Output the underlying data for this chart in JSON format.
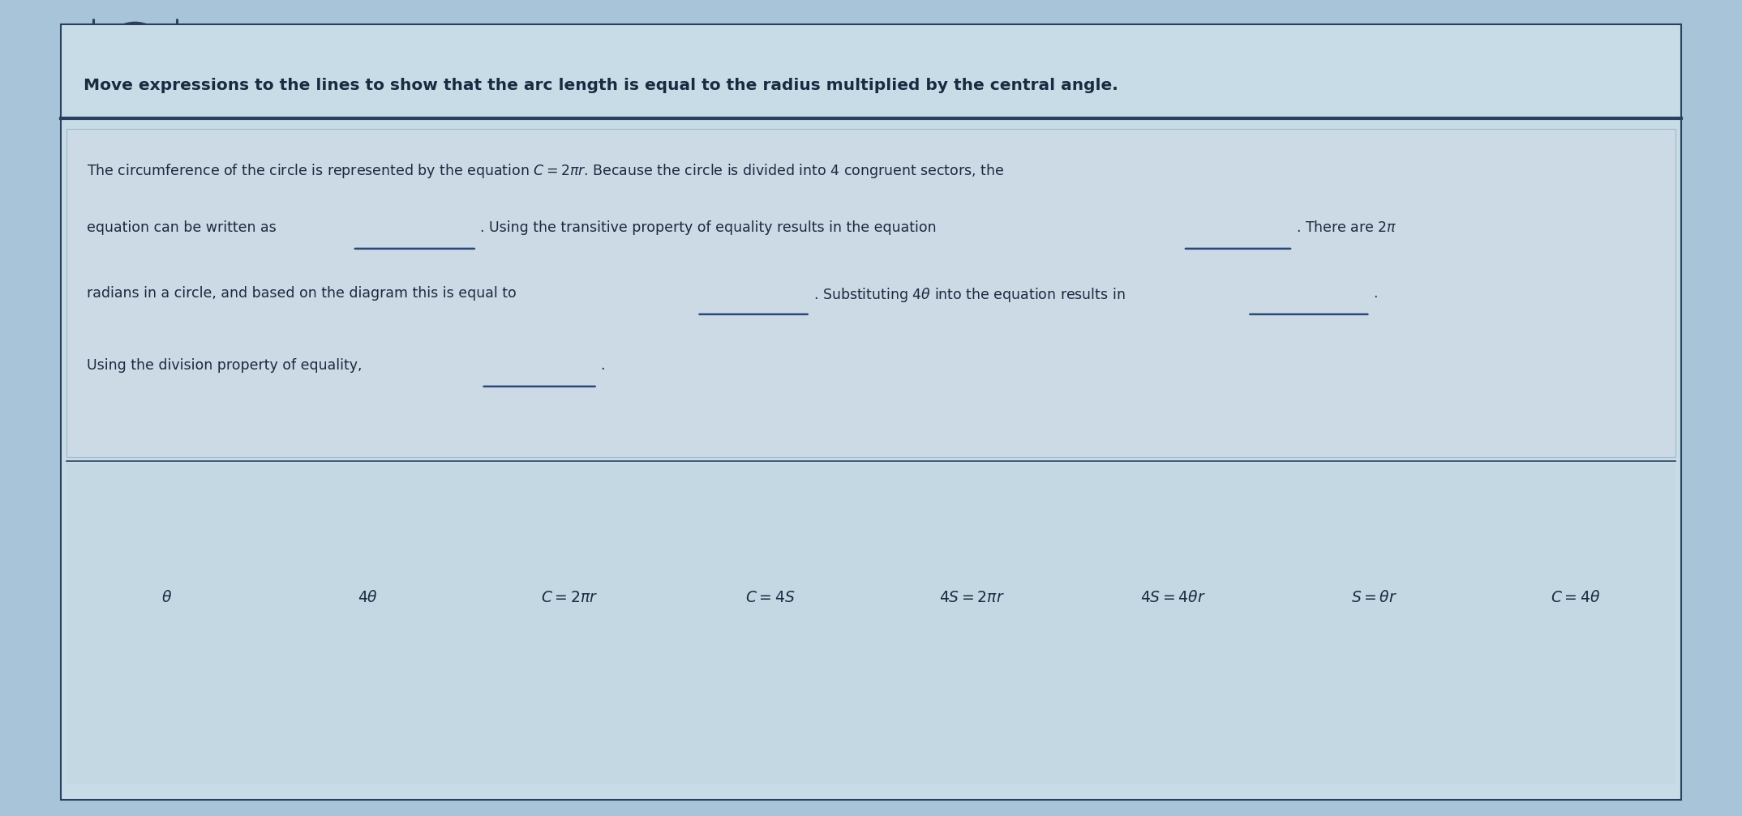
{
  "bg_color": "#a8c4d8",
  "main_box_bg": "#c8dce8",
  "text_box_bg": "#ccdae6",
  "expr_box_bg": "#c4d8e4",
  "title_color": "#1a2a40",
  "para_color": "#1a2a40",
  "divider_color": "#2a4060",
  "underline_color": "#2a4878",
  "title_text": "Move expressions to the lines to show that the arc length is equal to the radius multiplied by the central angle.",
  "title_fontsize": 14.5,
  "para_fontsize": 12.5,
  "expr_fontsize": 13.5,
  "expressions": [
    "$\\theta$",
    "$4\\theta$",
    "$C = 2\\pi r$",
    "$C = 4S$",
    "$4S = 2\\pi r$",
    "$4S = 4\\theta r$",
    "$S = \\theta r$",
    "$C = 4\\theta$"
  ],
  "fig_width": 21.48,
  "fig_height": 10.07
}
